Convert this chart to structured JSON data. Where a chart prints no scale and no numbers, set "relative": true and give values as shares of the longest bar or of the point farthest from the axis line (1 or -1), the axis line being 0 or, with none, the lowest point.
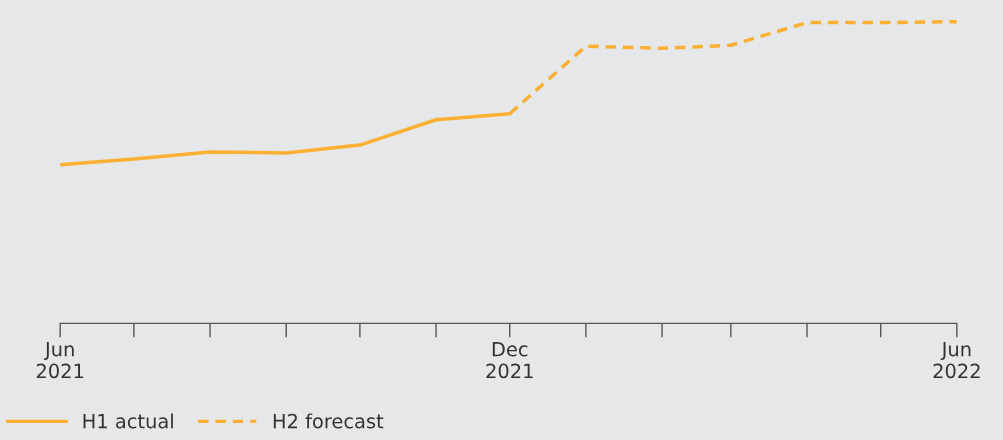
{
  "chart_data": {
    "type": "line",
    "relative": true,
    "xlim": [
      "2021-06",
      "2022-06"
    ],
    "xticks": [
      {
        "value": "2021-06",
        "label": "Jun\n2021"
      },
      {
        "value": "2021-07",
        "label": null
      },
      {
        "value": "2021-08",
        "label": null
      },
      {
        "value": "2021-09",
        "label": null
      },
      {
        "value": "2021-10",
        "label": null
      },
      {
        "value": "2021-11",
        "label": null
      },
      {
        "value": "2021-12",
        "label": "Dec\n2021"
      },
      {
        "value": "2022-01",
        "label": null
      },
      {
        "value": "2022-02",
        "label": null
      },
      {
        "value": "2022-03",
        "label": null
      },
      {
        "value": "2022-04",
        "label": null
      },
      {
        "value": "2022-05",
        "label": null
      },
      {
        "value": "2022-06",
        "label": "Jun\n2022"
      }
    ],
    "series": [
      {
        "name": "H1 actual",
        "color": "#fbb034",
        "line_style": "solid",
        "x": [
          "2021-06",
          "2021-07",
          "2021-08",
          "2021-09",
          "2021-10",
          "2021-11",
          "2021-12"
        ],
        "values": [
          0.526,
          0.545,
          0.568,
          0.565,
          0.591,
          0.675,
          0.695
        ]
      },
      {
        "name": "H2 forecast",
        "color": "#fbb034",
        "line_style": "dashed",
        "x": [
          "2021-12",
          "2022-01",
          "2022-02",
          "2022-03",
          "2022-04",
          "2022-05",
          "2022-06"
        ],
        "values": [
          0.695,
          0.919,
          0.912,
          0.922,
          0.997,
          0.997,
          1
        ]
      }
    ],
    "marker": "none",
    "grid": false,
    "legend": "bottom left"
  }
}
